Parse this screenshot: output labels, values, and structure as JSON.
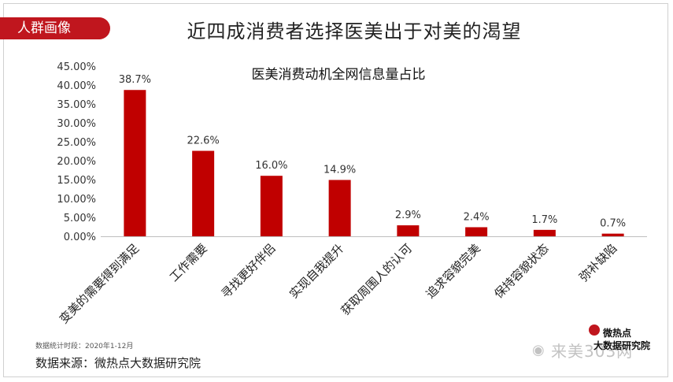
{
  "header": {
    "tag_label": "人群画像",
    "title": "近四成消费者选择医美出于对美的渴望"
  },
  "footer": {
    "note": "数据统计时段：2020年1-12月",
    "source": "数据来源：微热点大数据研究院",
    "logo_line1": "微热点",
    "logo_line2": "大数据研究院",
    "watermark": "来美303网"
  },
  "colors": {
    "bar": "#c00000",
    "accent": "#c0161e"
  },
  "chart_data": {
    "type": "bar",
    "title": "医美消费动机全网信息量占比",
    "categories": [
      "变美的需要得到满足",
      "工作需要",
      "寻找更好伴侣",
      "实现自我提升",
      "获取周围人的认可",
      "追求容貌完美",
      "保持容貌状态",
      "弥补缺陷"
    ],
    "values": [
      38.7,
      22.6,
      16.0,
      14.9,
      2.9,
      2.4,
      1.7,
      0.7
    ],
    "value_labels": [
      "38.7%",
      "22.6%",
      "16.0%",
      "14.9%",
      "2.9%",
      "2.4%",
      "1.7%",
      "0.7%"
    ],
    "yticks": [
      "0.00%",
      "5.00%",
      "10.00%",
      "15.00%",
      "20.00%",
      "25.00%",
      "30.00%",
      "35.00%",
      "40.00%",
      "45.00%"
    ],
    "ylim": [
      0,
      45
    ],
    "xlabel": "",
    "ylabel": "",
    "grid": false,
    "legend": "none"
  }
}
